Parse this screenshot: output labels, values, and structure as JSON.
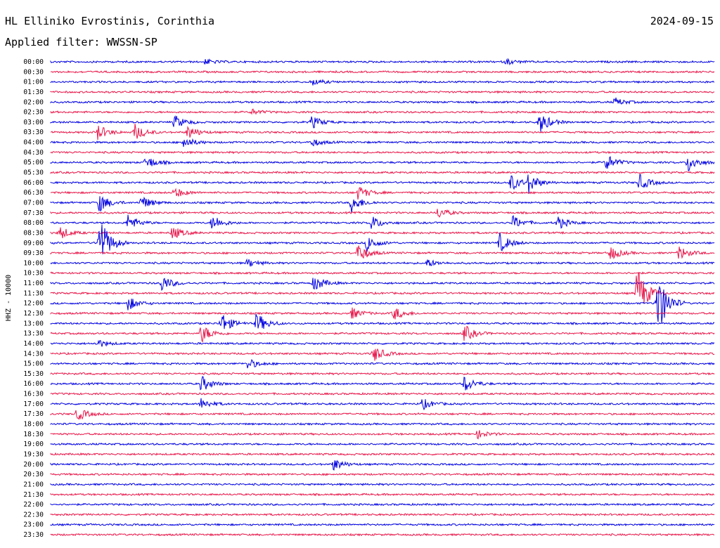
{
  "header": {
    "station": "HL Elliniko Evrostinis, Corinthia",
    "date": "2024-09-15",
    "filter": "Applied filter: WWSSN-SP"
  },
  "chart_data": {
    "type": "line",
    "title": "HL Elliniko Evrostinis, Corinthia",
    "ylabel": "HHZ - 10000",
    "colors": [
      "#0000e0",
      "#e8164a"
    ],
    "rows": [
      "00:00",
      "00:30",
      "01:00",
      "01:30",
      "02:00",
      "02:30",
      "03:00",
      "03:30",
      "04:00",
      "04:30",
      "05:00",
      "05:30",
      "06:00",
      "06:30",
      "07:00",
      "07:30",
      "08:00",
      "08:30",
      "09:00",
      "09:30",
      "10:00",
      "10:30",
      "11:00",
      "11:30",
      "12:00",
      "12:30",
      "13:00",
      "13:30",
      "14:00",
      "14:30",
      "15:00",
      "15:30",
      "16:00",
      "16:30",
      "17:00",
      "17:30",
      "18:00",
      "18:30",
      "19:00",
      "19:30",
      "20:00",
      "20:30",
      "21:00",
      "21:30",
      "22:00",
      "22:30",
      "23:00",
      "23:30"
    ],
    "events": [
      {
        "row": "00:00",
        "minute": 7.0,
        "amplitude": 4
      },
      {
        "row": "00:00",
        "minute": 20.6,
        "amplitude": 4
      },
      {
        "row": "01:00",
        "minute": 11.8,
        "amplitude": 5
      },
      {
        "row": "02:00",
        "minute": 25.5,
        "amplitude": 6
      },
      {
        "row": "02:30",
        "minute": 9.1,
        "amplitude": 4
      },
      {
        "row": "03:00",
        "minute": 5.6,
        "amplitude": 10
      },
      {
        "row": "03:00",
        "minute": 11.8,
        "amplitude": 9
      },
      {
        "row": "03:00",
        "minute": 22.1,
        "amplitude": 16
      },
      {
        "row": "03:30",
        "minute": 2.1,
        "amplitude": 12
      },
      {
        "row": "03:30",
        "minute": 3.8,
        "amplitude": 12
      },
      {
        "row": "03:30",
        "minute": 6.2,
        "amplitude": 10
      },
      {
        "row": "04:00",
        "minute": 6.0,
        "amplitude": 9
      },
      {
        "row": "04:00",
        "minute": 11.8,
        "amplitude": 6
      },
      {
        "row": "05:00",
        "minute": 4.3,
        "amplitude": 10
      },
      {
        "row": "05:00",
        "minute": 25.1,
        "amplitude": 12
      },
      {
        "row": "05:00",
        "minute": 28.8,
        "amplitude": 14
      },
      {
        "row": "06:00",
        "minute": 20.8,
        "amplitude": 12
      },
      {
        "row": "06:00",
        "minute": 21.6,
        "amplitude": 14
      },
      {
        "row": "06:00",
        "minute": 26.6,
        "amplitude": 12
      },
      {
        "row": "06:30",
        "minute": 5.6,
        "amplitude": 8
      },
      {
        "row": "06:30",
        "minute": 13.9,
        "amplitude": 10
      },
      {
        "row": "07:00",
        "minute": 2.2,
        "amplitude": 14
      },
      {
        "row": "07:00",
        "minute": 4.1,
        "amplitude": 10
      },
      {
        "row": "07:00",
        "minute": 13.6,
        "amplitude": 14
      },
      {
        "row": "07:30",
        "minute": 17.5,
        "amplitude": 8
      },
      {
        "row": "08:00",
        "minute": 3.5,
        "amplitude": 12
      },
      {
        "row": "08:00",
        "minute": 7.3,
        "amplitude": 12
      },
      {
        "row": "08:00",
        "minute": 14.5,
        "amplitude": 10
      },
      {
        "row": "08:00",
        "minute": 20.9,
        "amplitude": 10
      },
      {
        "row": "08:00",
        "minute": 22.9,
        "amplitude": 10
      },
      {
        "row": "08:30",
        "minute": 0.4,
        "amplitude": 10
      },
      {
        "row": "08:30",
        "minute": 5.5,
        "amplitude": 10
      },
      {
        "row": "09:00",
        "minute": 2.2,
        "amplitude": 40
      },
      {
        "row": "09:00",
        "minute": 14.3,
        "amplitude": 12
      },
      {
        "row": "09:00",
        "minute": 20.3,
        "amplitude": 14
      },
      {
        "row": "09:30",
        "minute": 13.9,
        "amplitude": 14
      },
      {
        "row": "09:30",
        "minute": 25.3,
        "amplitude": 10
      },
      {
        "row": "09:30",
        "minute": 28.4,
        "amplitude": 10
      },
      {
        "row": "10:00",
        "minute": 8.9,
        "amplitude": 6
      },
      {
        "row": "10:00",
        "minute": 17.0,
        "amplitude": 6
      },
      {
        "row": "11:00",
        "minute": 5.0,
        "amplitude": 12
      },
      {
        "row": "11:00",
        "minute": 11.9,
        "amplitude": 12
      },
      {
        "row": "11:30",
        "minute": 26.5,
        "amplitude": 40
      },
      {
        "row": "12:00",
        "minute": 3.5,
        "amplitude": 10
      },
      {
        "row": "12:00",
        "minute": 27.4,
        "amplitude": 50
      },
      {
        "row": "12:30",
        "minute": 13.6,
        "amplitude": 8
      },
      {
        "row": "12:30",
        "minute": 15.5,
        "amplitude": 10
      },
      {
        "row": "13:00",
        "minute": 7.7,
        "amplitude": 16
      },
      {
        "row": "13:00",
        "minute": 9.3,
        "amplitude": 16
      },
      {
        "row": "13:30",
        "minute": 6.8,
        "amplitude": 14
      },
      {
        "row": "13:30",
        "minute": 18.7,
        "amplitude": 12
      },
      {
        "row": "14:00",
        "minute": 2.1,
        "amplitude": 6
      },
      {
        "row": "14:30",
        "minute": 14.6,
        "amplitude": 12
      },
      {
        "row": "15:00",
        "minute": 8.9,
        "amplitude": 8
      },
      {
        "row": "16:00",
        "minute": 6.8,
        "amplitude": 12
      },
      {
        "row": "16:00",
        "minute": 18.7,
        "amplitude": 12
      },
      {
        "row": "17:00",
        "minute": 6.8,
        "amplitude": 8
      },
      {
        "row": "17:00",
        "minute": 16.8,
        "amplitude": 8
      },
      {
        "row": "17:30",
        "minute": 1.2,
        "amplitude": 10
      },
      {
        "row": "18:30",
        "minute": 19.3,
        "amplitude": 6
      },
      {
        "row": "20:00",
        "minute": 12.8,
        "amplitude": 9
      }
    ]
  }
}
